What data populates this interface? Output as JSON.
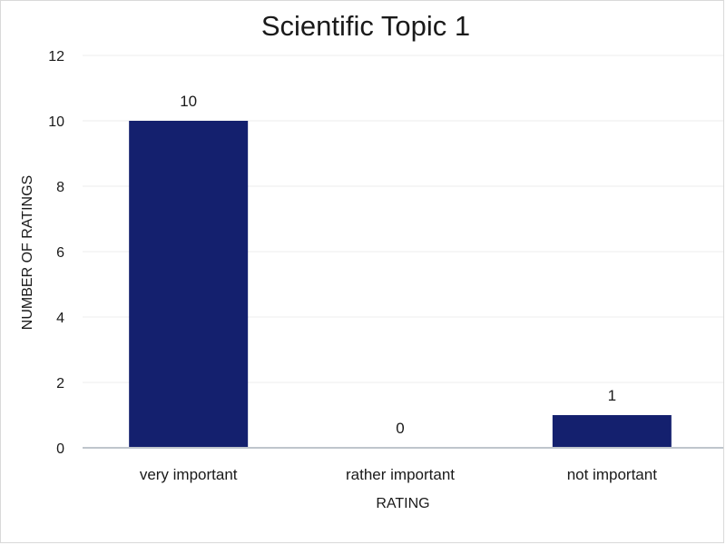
{
  "chart_data": {
    "type": "bar",
    "title": "Scientific Topic 1",
    "xlabel": "RATING",
    "ylabel": "NUMBER OF RATINGS",
    "categories": [
      "very important",
      "rather important",
      "not important"
    ],
    "values": [
      10,
      0,
      1
    ],
    "data_labels": [
      "10",
      "0",
      "1"
    ],
    "ylim": [
      0,
      12
    ],
    "yticks": [
      0,
      2,
      4,
      6,
      8,
      10,
      12
    ],
    "grid": true,
    "legend": "none",
    "colors": {
      "bar": "#14206e",
      "grid": "#eeeeee",
      "axis": "#bfc5cc"
    }
  }
}
